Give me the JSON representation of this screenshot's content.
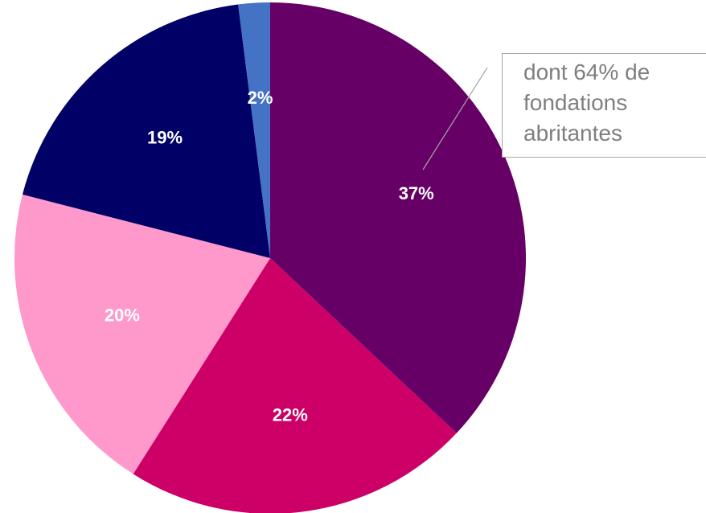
{
  "chart_data": {
    "type": "pie",
    "slices": [
      {
        "label": "37%",
        "value": 37,
        "color": "#660066"
      },
      {
        "label": "22%",
        "value": 22,
        "color": "#cc0066"
      },
      {
        "label": "20%",
        "value": 20,
        "color": "#ff99cc"
      },
      {
        "label": "19%",
        "value": 19,
        "color": "#000066"
      },
      {
        "label": "2%",
        "value": 2,
        "color": "#4472c4"
      }
    ],
    "annotation": "dont 64% de\nfondations\nabritantes",
    "legend": "none"
  }
}
